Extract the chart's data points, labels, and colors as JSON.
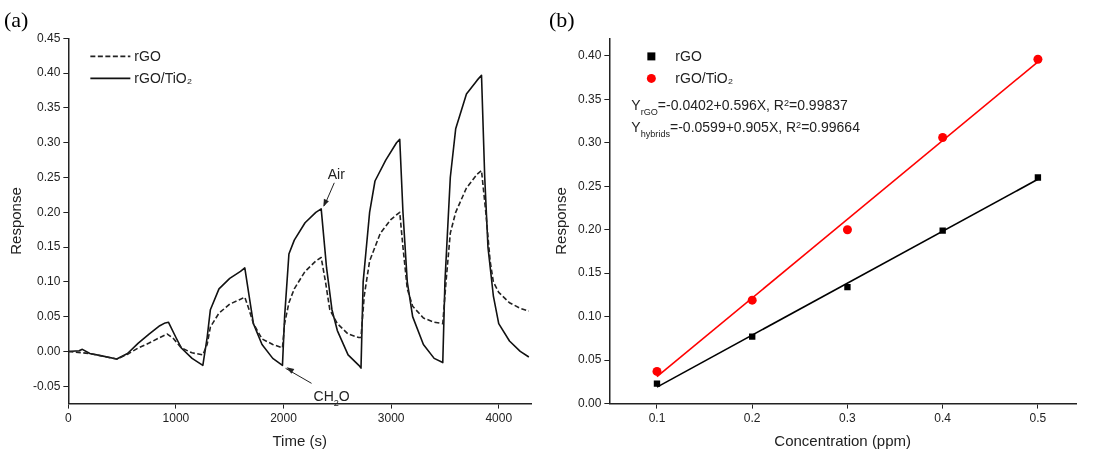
{
  "chart_data": [
    {
      "type": "line",
      "title": "(a)",
      "xlabel": "Time (s)",
      "ylabel": "Response",
      "xlim": [
        0,
        4300
      ],
      "xticks": [
        0,
        1000,
        2000,
        3000,
        4000
      ],
      "ylim": [
        -0.075,
        0.45
      ],
      "yticks": [
        {
          "value": -0.05,
          "label": "-0.05"
        },
        {
          "value": 0,
          "label": "0.00"
        },
        {
          "value": 0.05,
          "label": "0.05"
        },
        {
          "value": 0.1,
          "label": "0.10"
        },
        {
          "value": 0.15,
          "label": "0.15"
        },
        {
          "value": 0.2,
          "label": "0.20"
        },
        {
          "value": 0.25,
          "label": "0.25"
        },
        {
          "value": 0.3,
          "label": "0.30"
        },
        {
          "value": 0.35,
          "label": "0.35"
        },
        {
          "value": 0.4,
          "label": "0.40"
        },
        {
          "value": 0.45,
          "label": "0.45"
        }
      ],
      "grid": false,
      "legend": "top left",
      "marker": "none",
      "series": [
        {
          "name": "rGO",
          "color": "#222222",
          "line_style": "dashed",
          "x": [
            0,
            200,
            450,
            550,
            650,
            750,
            850,
            920,
            980,
            1050,
            1150,
            1250,
            1290,
            1320,
            1400,
            1500,
            1600,
            1640,
            1680,
            1720,
            1800,
            1900,
            1990,
            2010,
            2050,
            2100,
            2200,
            2300,
            2350,
            2390,
            2430,
            2500,
            2600,
            2700,
            2720,
            2750,
            2800,
            2900,
            3000,
            3080,
            3110,
            3150,
            3200,
            3300,
            3400,
            3480,
            3510,
            3550,
            3600,
            3700,
            3800,
            3840,
            3880,
            3920,
            3950,
            4000,
            4100,
            4200,
            4280
          ],
          "values": [
            0,
            -0.003,
            -0.011,
            -0.004,
            0.005,
            0.012,
            0.02,
            0.025,
            0.018,
            0.005,
            -0.002,
            -0.005,
            0.01,
            0.035,
            0.055,
            0.068,
            0.075,
            0.078,
            0.06,
            0.04,
            0.018,
            0.01,
            0.005,
            0.04,
            0.07,
            0.09,
            0.115,
            0.13,
            0.135,
            0.1,
            0.06,
            0.04,
            0.025,
            0.02,
            0.02,
            0.08,
            0.13,
            0.17,
            0.19,
            0.2,
            0.15,
            0.09,
            0.065,
            0.048,
            0.042,
            0.04,
            0.1,
            0.17,
            0.2,
            0.235,
            0.255,
            0.26,
            0.2,
            0.13,
            0.1,
            0.085,
            0.07,
            0.062,
            0.058
          ]
        },
        {
          "name": "rGO/TiO₂",
          "color": "#111111",
          "line_style": "solid",
          "x": [
            0,
            100,
            130,
            200,
            300,
            450,
            550,
            650,
            750,
            850,
            900,
            930,
            1000,
            1050,
            1150,
            1250,
            1290,
            1320,
            1400,
            1500,
            1600,
            1640,
            1680,
            1720,
            1800,
            1900,
            1990,
            2010,
            2050,
            2100,
            2200,
            2300,
            2350,
            2400,
            2450,
            2500,
            2600,
            2700,
            2720,
            2740,
            2800,
            2850,
            2950,
            3050,
            3080,
            3110,
            3150,
            3200,
            3300,
            3400,
            3480,
            3500,
            3550,
            3600,
            3700,
            3800,
            3840,
            3870,
            3900,
            3950,
            4000,
            4100,
            4200,
            4280
          ],
          "values": [
            0,
            0.001,
            0.003,
            -0.003,
            -0.006,
            -0.011,
            -0.003,
            0.012,
            0.025,
            0.037,
            0.041,
            0.042,
            0.02,
            0.005,
            -0.01,
            -0.02,
            0.02,
            0.06,
            0.09,
            0.105,
            0.115,
            0.12,
            0.08,
            0.04,
            0.01,
            -0.01,
            -0.02,
            0.05,
            0.14,
            0.16,
            0.185,
            0.2,
            0.205,
            0.12,
            0.06,
            0.03,
            -0.005,
            -0.02,
            -0.024,
            0.1,
            0.2,
            0.245,
            0.275,
            0.3,
            0.305,
            0.2,
            0.1,
            0.05,
            0.01,
            -0.01,
            -0.016,
            0.1,
            0.25,
            0.32,
            0.37,
            0.39,
            0.397,
            0.25,
            0.15,
            0.08,
            0.04,
            0.015,
            0,
            -0.008
          ]
        }
      ],
      "annotations": [
        {
          "text": "Air",
          "x": 2360,
          "y": 0.205
        },
        {
          "text": "CH$_{2}$O",
          "x": 2000,
          "y": -0.02
        }
      ]
    },
    {
      "type": "scatter",
      "title": "(b)",
      "xlabel": "Concentration (ppm)",
      "ylabel": "Response",
      "xlim": [
        0.05,
        0.54
      ],
      "xticks": [
        0.1,
        0.2,
        0.3,
        0.4,
        0.5
      ],
      "ylim": [
        0,
        0.42
      ],
      "yticks": [
        {
          "value": 0,
          "label": "0.00"
        },
        {
          "value": 0.05,
          "label": "0.05"
        },
        {
          "value": 0.1,
          "label": "0.10"
        },
        {
          "value": 0.15,
          "label": "0.15"
        },
        {
          "value": 0.2,
          "label": "0.20"
        },
        {
          "value": 0.25,
          "label": "0.25"
        },
        {
          "value": 0.3,
          "label": "0.30"
        },
        {
          "value": 0.35,
          "label": "0.35"
        },
        {
          "value": 0.4,
          "label": "0.40"
        }
      ],
      "grid": false,
      "legend": "top left",
      "series": [
        {
          "name": "rGO",
          "color": "#000000",
          "marker": "square",
          "x": [
            0.1,
            0.2,
            0.3,
            0.4,
            0.5
          ],
          "values": [
            0.023,
            0.077,
            0.134,
            0.199,
            0.26
          ]
        },
        {
          "name": "rGO/TiO₂",
          "color": "#ff0000",
          "marker": "circle",
          "x": [
            0.1,
            0.2,
            0.3,
            0.4,
            0.5
          ],
          "values": [
            0.037,
            0.119,
            0.2,
            0.306,
            0.396
          ]
        },
        {
          "type": "line",
          "color": "#000000",
          "x": [
            0.1,
            0.5
          ],
          "values": [
            0.019,
            0.258
          ]
        },
        {
          "type": "line",
          "color": "#ff0000",
          "x": [
            0.1,
            0.5
          ],
          "values": [
            0.031,
            0.393
          ]
        }
      ],
      "annotations": [
        "Y$_{rGO}$=-0.0402+0.596X, R$^{2}$=0.99837",
        "Y$_{hybrids}$=-0.0599+0.905X, R$^{2}$=0.99664"
      ]
    }
  ]
}
